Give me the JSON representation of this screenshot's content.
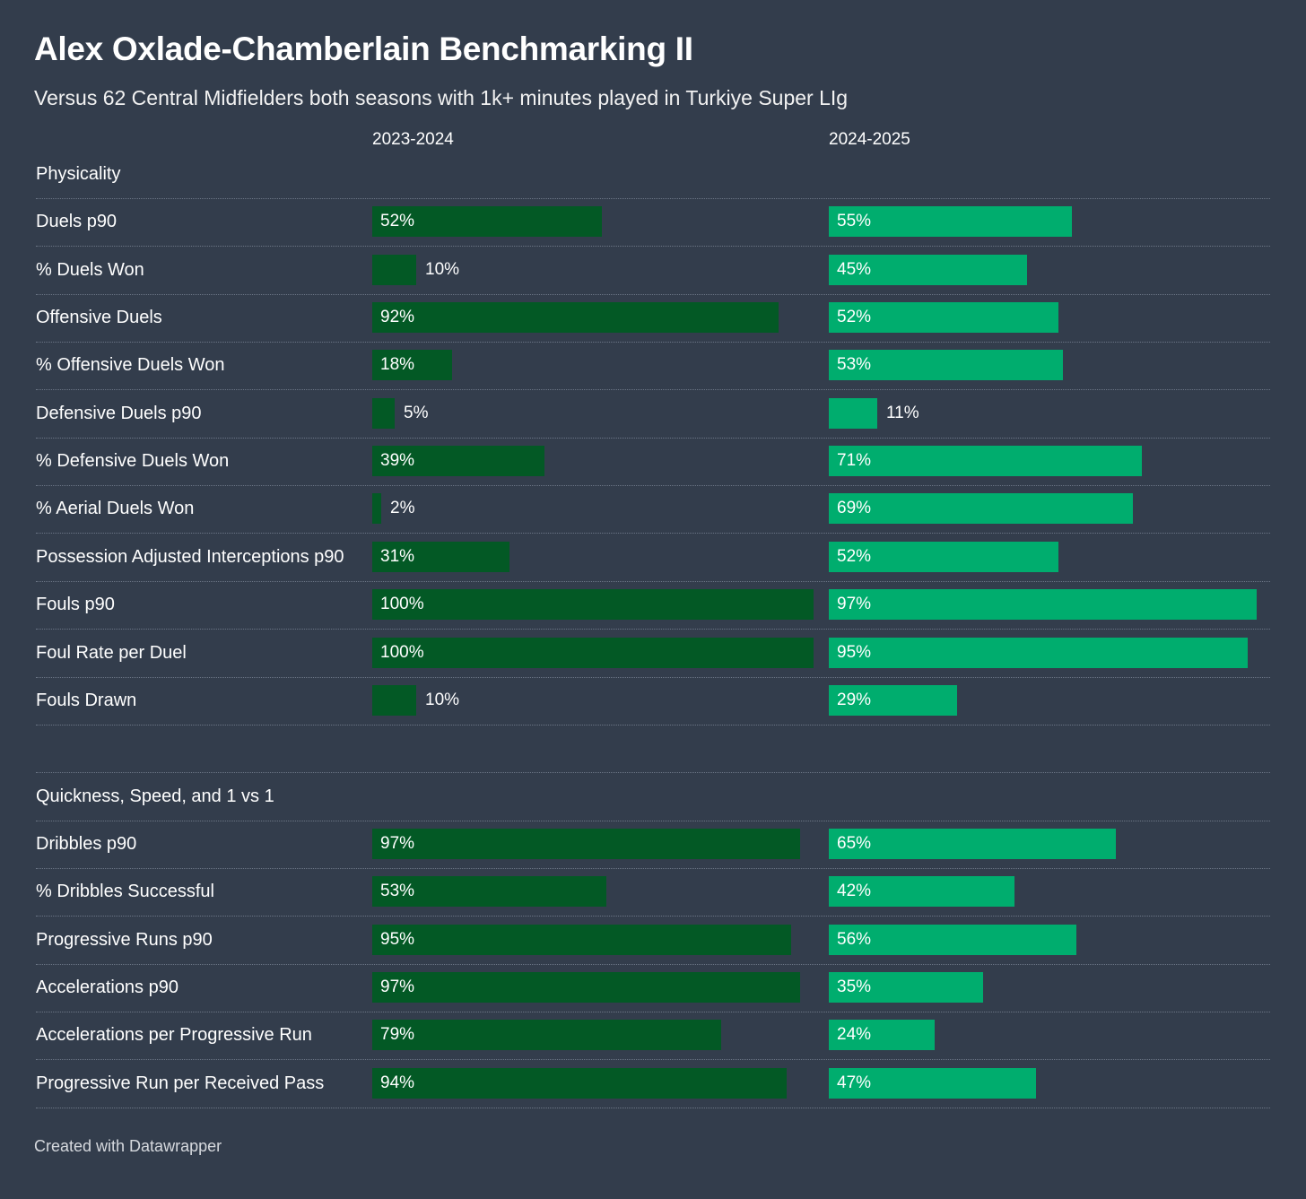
{
  "title": "Alex Oxlade-Chamberlain Benchmarking II",
  "subtitle": "Versus 62 Central Midfielders both seasons with 1k+ minutes played in Turkiye Super LIg",
  "footer": "Created with Datawrapper",
  "colors": {
    "background": "#333d4c",
    "season1": "#035925",
    "season2": "#00ad6e"
  },
  "chart_data": {
    "type": "bar",
    "title": "Alex Oxlade-Chamberlain Benchmarking II",
    "xlim": [
      0,
      100
    ],
    "unit": "%",
    "series_names": [
      "2023-2024",
      "2024-2025"
    ],
    "rows": [
      {
        "label": "Physicality",
        "header": true
      },
      {
        "label": "Duels p90",
        "v1": 52,
        "v2": 55
      },
      {
        "label": "% Duels Won",
        "v1": 10,
        "v2": 45
      },
      {
        "label": "Offensive Duels",
        "v1": 92,
        "v2": 52
      },
      {
        "label": "% Offensive Duels Won",
        "v1": 18,
        "v2": 53
      },
      {
        "label": "Defensive Duels p90",
        "v1": 5,
        "v2": 11
      },
      {
        "label": "% Defensive Duels Won",
        "v1": 39,
        "v2": 71
      },
      {
        "label": "% Aerial Duels Won",
        "v1": 2,
        "v2": 69
      },
      {
        "label": "Possession Adjusted Interceptions p90",
        "v1": 31,
        "v2": 52
      },
      {
        "label": "Fouls p90",
        "v1": 100,
        "v2": 97
      },
      {
        "label": "Foul Rate per Duel",
        "v1": 100,
        "v2": 95
      },
      {
        "label": "Fouls Drawn",
        "v1": 10,
        "v2": 29
      },
      {
        "label": "",
        "spacer": true
      },
      {
        "label": "Quickness, Speed, and 1 vs 1",
        "header": true
      },
      {
        "label": "Dribbles p90",
        "v1": 97,
        "v2": 65
      },
      {
        "label": "% Dribbles Successful",
        "v1": 53,
        "v2": 42
      },
      {
        "label": "Progressive Runs p90",
        "v1": 95,
        "v2": 56
      },
      {
        "label": "Accelerations p90",
        "v1": 97,
        "v2": 35
      },
      {
        "label": "Accelerations per Progressive Run",
        "v1": 79,
        "v2": 24
      },
      {
        "label": "Progressive Run per Received Pass",
        "v1": 94,
        "v2": 47
      }
    ]
  }
}
